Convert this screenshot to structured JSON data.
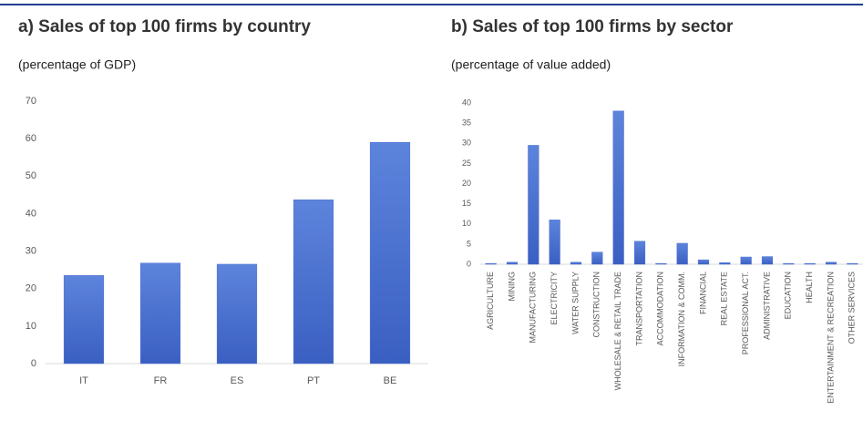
{
  "chart_data": [
    {
      "type": "bar",
      "title": "a) Sales of top 100 firms by country",
      "subtitle": "(percentage of GDP)",
      "categories": [
        "IT",
        "FR",
        "ES",
        "PT",
        "BE"
      ],
      "values": [
        23.5,
        26.8,
        26.5,
        43.7,
        59
      ],
      "color": "#4a6fd0",
      "ylim": [
        0,
        70
      ],
      "yticks": [
        0,
        10,
        20,
        30,
        40,
        50,
        60,
        70
      ],
      "grid": false
    },
    {
      "type": "bar",
      "title": "b) Sales of top 100 firms by sector",
      "subtitle": "(percentage of value added)",
      "categories": [
        "AGRICULTURE",
        "MINING",
        "MANUFACTURING",
        "ELECTRICITY",
        "WATER SUPPLY",
        "CONSTRUCTION",
        "WHOLESALE & RETAIL TRADE",
        "TRANSPORTATION",
        "ACCOMMODATION",
        "INFORMATION & COMM.",
        "FINANCIAL",
        "REAL ESTATE",
        "PROFESSIONAL ACT.",
        "ADMINISTRATIVE",
        "EDUCATION",
        "HEALTH",
        "ENTERTAINMENT & RECREATION",
        "OTHER SERVICES"
      ],
      "values": [
        0.2,
        0.5,
        29.5,
        11,
        0.5,
        3,
        38,
        5.7,
        0.2,
        5.2,
        1.1,
        0.4,
        1.8,
        1.9,
        0.2,
        0.2,
        0.5,
        0.2
      ],
      "color": "#4a6fd0",
      "ylim": [
        0,
        40
      ],
      "yticks": [
        0,
        5,
        10,
        15,
        20,
        25,
        30,
        35,
        40
      ],
      "grid": false
    }
  ]
}
